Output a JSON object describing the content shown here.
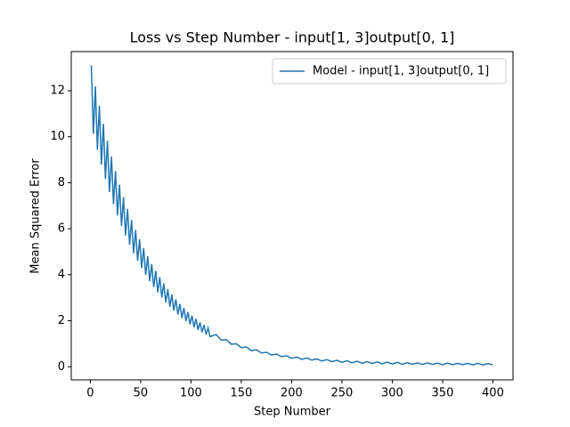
{
  "chart_data": {
    "type": "line",
    "title": "Loss vs Step Number - input[1, 3]output[0, 1]",
    "x_label": "Step Number",
    "y_label": "Mean Squared Error",
    "x": [
      1,
      3,
      5,
      7,
      9,
      11,
      13,
      15,
      17,
      19,
      21,
      23,
      25,
      27,
      29,
      31,
      33,
      35,
      37,
      39,
      41,
      43,
      45,
      47,
      49,
      51,
      53,
      55,
      57,
      59,
      61,
      63,
      65,
      67,
      69,
      71,
      73,
      75,
      77,
      79,
      81,
      83,
      85,
      87,
      89,
      91,
      93,
      95,
      97,
      99,
      101,
      103,
      105,
      107,
      109,
      111,
      113,
      115,
      117,
      119,
      125,
      130,
      135,
      140,
      145,
      150,
      155,
      160,
      165,
      170,
      175,
      180,
      185,
      190,
      195,
      200,
      205,
      210,
      215,
      220,
      225,
      230,
      235,
      240,
      245,
      250,
      255,
      260,
      265,
      270,
      275,
      280,
      285,
      290,
      295,
      300,
      305,
      310,
      315,
      320,
      325,
      330,
      335,
      340,
      345,
      350,
      355,
      360,
      365,
      370,
      375,
      380,
      385,
      390,
      395,
      400
    ],
    "series": [
      {
        "name": "Model - input[1, 3]output[0, 1]",
        "color": "#1f77b4",
        "values": [
          13.1,
          10.13,
          12.19,
          9.43,
          11.34,
          8.78,
          10.56,
          8.16,
          9.82,
          7.59,
          9.14,
          7.07,
          8.5,
          6.58,
          7.91,
          6.12,
          7.37,
          5.7,
          6.86,
          5.3,
          6.38,
          4.94,
          5.95,
          4.6,
          5.54,
          4.29,
          5.16,
          3.99,
          4.81,
          3.72,
          4.47,
          3.46,
          4.17,
          3.23,
          3.89,
          3.01,
          3.62,
          2.8,
          3.37,
          2.61,
          3.14,
          2.44,
          2.93,
          2.27,
          2.73,
          2.12,
          2.55,
          1.98,
          2.38,
          1.84,
          2.22,
          1.72,
          2.08,
          1.6,
          1.93,
          1.5,
          1.81,
          1.4,
          1.69,
          1.31,
          1.4,
          1.16,
          1.18,
          0.98,
          1.0,
          0.83,
          0.86,
          0.7,
          0.74,
          0.6,
          0.63,
          0.51,
          0.55,
          0.44,
          0.48,
          0.37,
          0.42,
          0.32,
          0.38,
          0.29,
          0.34,
          0.25,
          0.31,
          0.22,
          0.28,
          0.19,
          0.26,
          0.17,
          0.24,
          0.15,
          0.22,
          0.14,
          0.21,
          0.13,
          0.2,
          0.12,
          0.19,
          0.11,
          0.18,
          0.11,
          0.17,
          0.1,
          0.17,
          0.1,
          0.16,
          0.09,
          0.16,
          0.09,
          0.15,
          0.09,
          0.15,
          0.08,
          0.15,
          0.08,
          0.14,
          0.08
        ]
      }
    ],
    "xlim": [
      -18.95,
      419.95
    ],
    "xticks": [
      0,
      50,
      100,
      150,
      200,
      250,
      300,
      350,
      400
    ],
    "ylim": [
      -0.57,
      13.7
    ],
    "yticks": [
      0,
      2,
      4,
      6,
      8,
      10,
      12
    ],
    "legend": "upper right",
    "grid": false
  }
}
